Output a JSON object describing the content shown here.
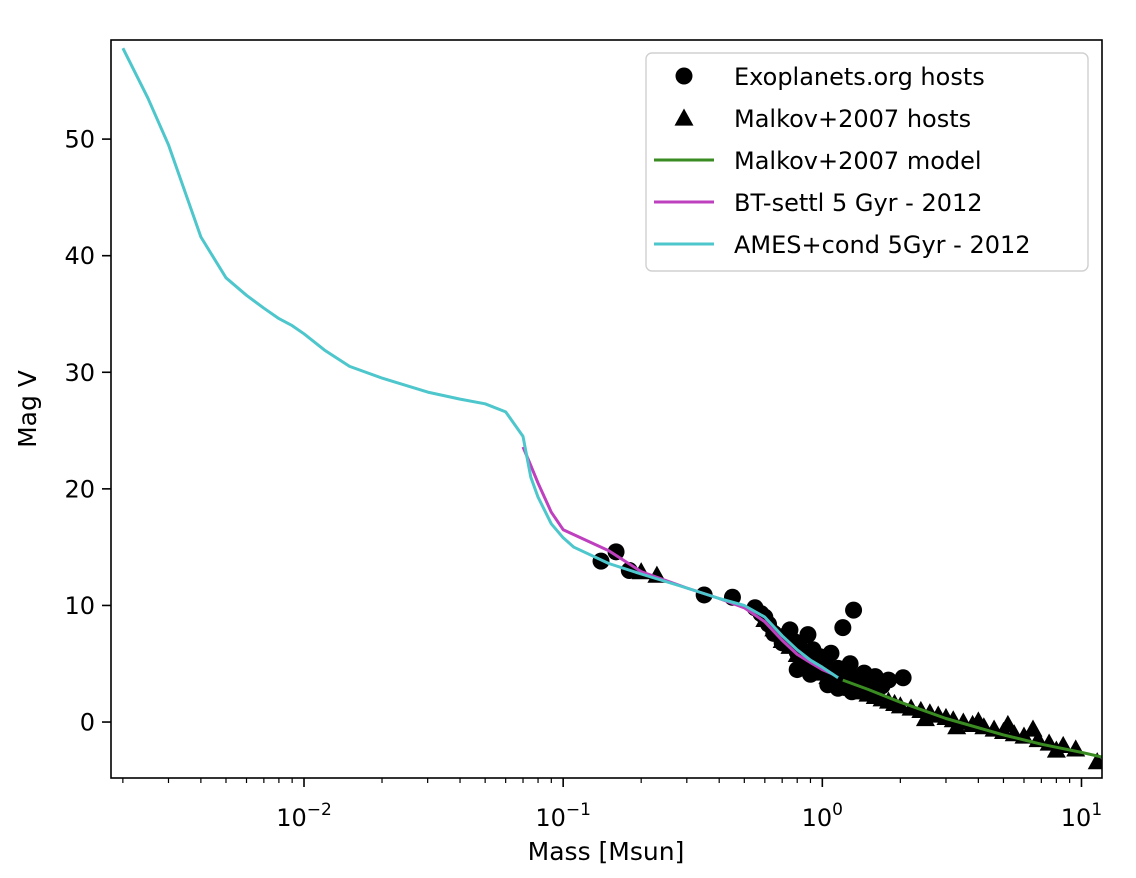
{
  "chart_data": {
    "type": "scatter+line",
    "xscale": "log",
    "xlabel": "Mass [Msun]",
    "ylabel": "Mag V",
    "xlim": [
      0.0018,
      12.0
    ],
    "ylim": [
      -4.8,
      58.5
    ],
    "x_ticks": [
      {
        "value": 0.01,
        "base": "10",
        "exp": "−2"
      },
      {
        "value": 0.1,
        "base": "10",
        "exp": "−1"
      },
      {
        "value": 1,
        "base": "10",
        "exp": "0"
      },
      {
        "value": 10,
        "base": "10",
        "exp": "1"
      }
    ],
    "y_ticks": [
      0,
      10,
      20,
      30,
      40,
      50
    ],
    "legend": {
      "position": "top-right",
      "entries": [
        {
          "label": "Exoplanets.org hosts",
          "marker": "circle",
          "color": "#000000"
        },
        {
          "label": "Malkov+2007 hosts",
          "marker": "triangle",
          "color": "#000000"
        },
        {
          "label": "Malkov+2007 model",
          "marker": "line",
          "color": "#3a8c22"
        },
        {
          "label": "BT-settl 5 Gyr - 2012",
          "marker": "line",
          "color": "#bf40bf"
        },
        {
          "label": "AMES+cond 5Gyr - 2012",
          "marker": "line",
          "color": "#4dc6cc"
        }
      ]
    },
    "series": [
      {
        "name": "Exoplanets.org hosts",
        "kind": "scatter",
        "marker": "circle",
        "color": "#000000",
        "points": [
          [
            0.14,
            13.8
          ],
          [
            0.16,
            14.6
          ],
          [
            0.18,
            13.0
          ],
          [
            0.35,
            10.9
          ],
          [
            0.45,
            10.7
          ],
          [
            0.55,
            9.8
          ],
          [
            0.58,
            9.3
          ],
          [
            0.6,
            9.0
          ],
          [
            0.62,
            8.4
          ],
          [
            0.65,
            7.6
          ],
          [
            0.7,
            6.8
          ],
          [
            0.72,
            7.4
          ],
          [
            0.75,
            7.9
          ],
          [
            0.78,
            6.9
          ],
          [
            0.8,
            6.0
          ],
          [
            0.82,
            6.4
          ],
          [
            0.85,
            5.7
          ],
          [
            0.88,
            7.5
          ],
          [
            0.9,
            5.4
          ],
          [
            0.92,
            6.2
          ],
          [
            0.95,
            5.0
          ],
          [
            0.98,
            5.6
          ],
          [
            1.0,
            4.8
          ],
          [
            1.02,
            5.2
          ],
          [
            1.05,
            4.5
          ],
          [
            1.08,
            5.9
          ],
          [
            1.1,
            4.3
          ],
          [
            1.12,
            3.9
          ],
          [
            1.15,
            4.6
          ],
          [
            1.18,
            3.6
          ],
          [
            1.2,
            8.1
          ],
          [
            1.22,
            4.2
          ],
          [
            1.25,
            3.3
          ],
          [
            1.28,
            5.0
          ],
          [
            1.3,
            3.0
          ],
          [
            1.32,
            9.6
          ],
          [
            1.35,
            3.8
          ],
          [
            1.4,
            2.8
          ],
          [
            1.45,
            4.2
          ],
          [
            1.5,
            3.4
          ],
          [
            1.55,
            2.6
          ],
          [
            1.6,
            3.9
          ],
          [
            1.7,
            3.1
          ],
          [
            1.8,
            3.6
          ],
          [
            2.05,
            3.8
          ],
          [
            0.8,
            4.5
          ],
          [
            0.9,
            4.1
          ],
          [
            1.05,
            3.2
          ],
          [
            1.15,
            2.9
          ],
          [
            1.3,
            2.6
          ]
        ]
      },
      {
        "name": "Malkov+2007 hosts",
        "kind": "scatter",
        "marker": "triangle",
        "color": "#000000",
        "points": [
          [
            0.2,
            12.9
          ],
          [
            0.23,
            12.6
          ],
          [
            0.6,
            8.8
          ],
          [
            0.65,
            8.0
          ],
          [
            0.7,
            7.0
          ],
          [
            0.75,
            6.5
          ],
          [
            0.8,
            5.8
          ],
          [
            0.85,
            5.3
          ],
          [
            0.9,
            4.9
          ],
          [
            0.95,
            4.6
          ],
          [
            1.0,
            4.2
          ],
          [
            1.05,
            3.9
          ],
          [
            1.1,
            3.6
          ],
          [
            1.2,
            3.2
          ],
          [
            1.3,
            2.9
          ],
          [
            1.4,
            2.6
          ],
          [
            1.5,
            2.4
          ],
          [
            1.6,
            2.2
          ],
          [
            1.7,
            2.0
          ],
          [
            1.8,
            1.8
          ],
          [
            1.9,
            1.6
          ],
          [
            2.0,
            1.4
          ],
          [
            2.2,
            1.2
          ],
          [
            2.4,
            1.0
          ],
          [
            2.6,
            0.8
          ],
          [
            2.8,
            0.6
          ],
          [
            3.0,
            0.4
          ],
          [
            3.2,
            0.2
          ],
          [
            3.5,
            0.0
          ],
          [
            3.8,
            -0.2
          ],
          [
            4.2,
            -0.4
          ],
          [
            4.6,
            -0.6
          ],
          [
            5.0,
            -0.8
          ],
          [
            5.5,
            -1.0
          ],
          [
            6.0,
            -1.2
          ],
          [
            6.8,
            -1.5
          ],
          [
            7.5,
            -1.8
          ],
          [
            8.5,
            -2.0
          ],
          [
            9.5,
            -2.3
          ],
          [
            11.5,
            -3.4
          ],
          [
            2.5,
            0.3
          ],
          [
            3.3,
            -0.4
          ],
          [
            4.0,
            0.1
          ],
          [
            5.2,
            -0.2
          ],
          [
            6.5,
            -0.6
          ],
          [
            8.0,
            -2.4
          ]
        ]
      },
      {
        "name": "Malkov+2007 model",
        "kind": "line",
        "color": "#3a8c22",
        "points": [
          [
            1.2,
            3.6
          ],
          [
            1.5,
            2.8
          ],
          [
            2.0,
            1.7
          ],
          [
            3.0,
            0.3
          ],
          [
            5.0,
            -1.1
          ],
          [
            7.0,
            -1.9
          ],
          [
            10.0,
            -2.6
          ],
          [
            12.0,
            -3.0
          ]
        ]
      },
      {
        "name": "BT-settl 5 Gyr - 2012",
        "kind": "line",
        "color": "#bf40bf",
        "points": [
          [
            0.07,
            23.6
          ],
          [
            0.075,
            22.0
          ],
          [
            0.08,
            20.5
          ],
          [
            0.09,
            18.0
          ],
          [
            0.1,
            16.5
          ],
          [
            0.15,
            14.7
          ],
          [
            0.2,
            12.9
          ],
          [
            0.3,
            11.5
          ],
          [
            0.4,
            10.6
          ],
          [
            0.5,
            9.8
          ],
          [
            0.6,
            8.6
          ],
          [
            0.7,
            7.0
          ],
          [
            0.8,
            5.8
          ],
          [
            0.9,
            5.1
          ],
          [
            1.0,
            4.5
          ],
          [
            1.1,
            4.1
          ]
        ]
      },
      {
        "name": "AMES+cond 5Gyr - 2012",
        "kind": "line",
        "color": "#4dc6cc",
        "points": [
          [
            0.002,
            57.8
          ],
          [
            0.0025,
            53.5
          ],
          [
            0.003,
            49.5
          ],
          [
            0.004,
            41.6
          ],
          [
            0.005,
            38.1
          ],
          [
            0.006,
            36.6
          ],
          [
            0.007,
            35.5
          ],
          [
            0.008,
            34.6
          ],
          [
            0.009,
            34.0
          ],
          [
            0.01,
            33.3
          ],
          [
            0.012,
            31.9
          ],
          [
            0.015,
            30.5
          ],
          [
            0.02,
            29.5
          ],
          [
            0.03,
            28.3
          ],
          [
            0.04,
            27.7
          ],
          [
            0.05,
            27.3
          ],
          [
            0.06,
            26.6
          ],
          [
            0.07,
            24.5
          ],
          [
            0.075,
            21.0
          ],
          [
            0.08,
            19.3
          ],
          [
            0.09,
            17.0
          ],
          [
            0.1,
            15.8
          ],
          [
            0.11,
            15.0
          ],
          [
            0.15,
            13.6
          ],
          [
            0.2,
            12.7
          ],
          [
            0.3,
            11.5
          ],
          [
            0.4,
            10.6
          ],
          [
            0.5,
            10.0
          ],
          [
            0.6,
            9.0
          ],
          [
            0.7,
            7.4
          ],
          [
            0.8,
            6.2
          ],
          [
            0.9,
            5.3
          ],
          [
            1.0,
            4.7
          ],
          [
            1.15,
            3.8
          ]
        ]
      }
    ]
  }
}
